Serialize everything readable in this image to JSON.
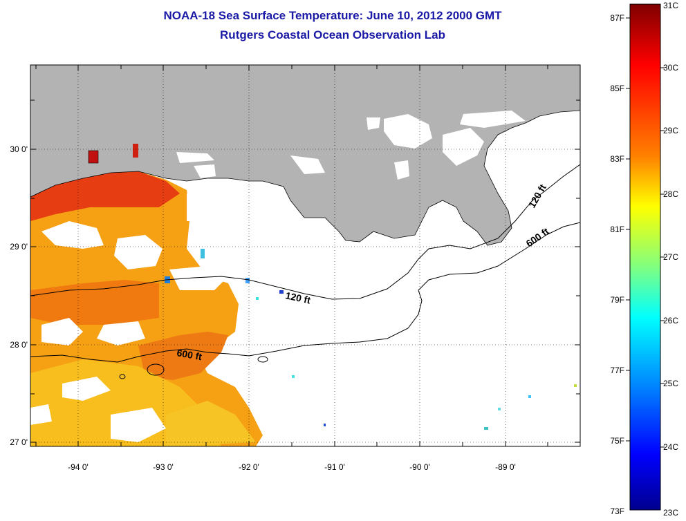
{
  "title": "NOAA-18 Sea Surface Temperature:  June 10, 2012 2000 GMT",
  "subtitle": "Rutgers Coastal Ocean Observation Lab",
  "map": {
    "lon_labels": [
      "-94 0'",
      "-93 0'",
      "-92 0'",
      "-91 0'",
      "-90 0'",
      "-89 0'"
    ],
    "lat_labels": [
      "30 0'",
      "29 0'",
      "28 0'",
      "27 0'"
    ],
    "contours": [
      "120 ft",
      "120 ft",
      "600 ft",
      "600 ft"
    ],
    "land_color": "#b3b3b3",
    "cloud_color": "#ffffff"
  },
  "colorbar": {
    "f_labels": [
      "87F",
      "85F",
      "83F",
      "81F",
      "79F",
      "77F",
      "75F",
      "73F"
    ],
    "c_labels": [
      "31C",
      "30C",
      "29C",
      "28C",
      "27C",
      "26C",
      "25C",
      "24C",
      "23C"
    ],
    "colors": [
      "#7f0000",
      "#ff0000",
      "#ff8000",
      "#ffff00",
      "#80ff80",
      "#00ffff",
      "#0080ff",
      "#0000ff",
      "#00008f"
    ]
  }
}
